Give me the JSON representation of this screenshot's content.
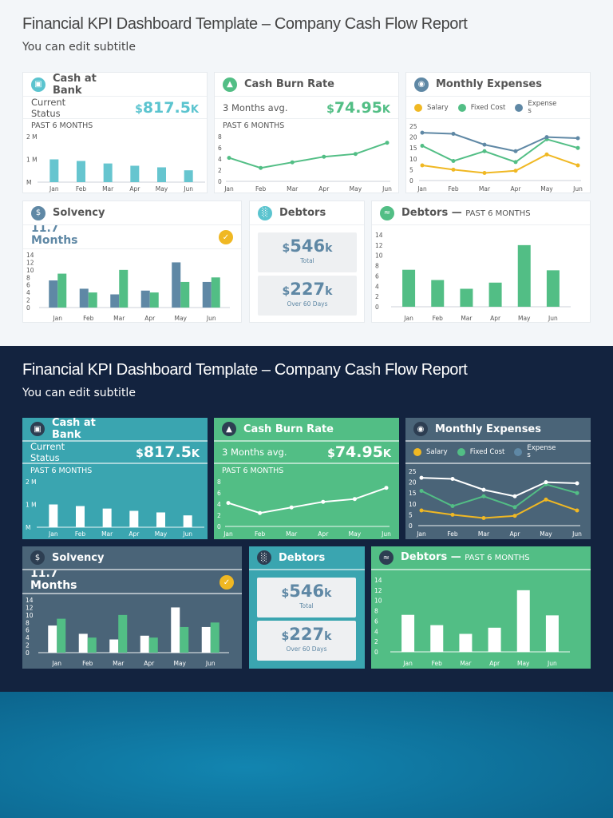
{
  "header": {
    "title": "Financial KPI Dashboard Template – Company Cash Flow Report",
    "subtitle": "You can edit subtitle"
  },
  "colors": {
    "teal": "#5bc4cf",
    "green": "#52be85",
    "slate": "#5f88a5",
    "yellow": "#f0b823",
    "dark_bg": "#13233f"
  },
  "cards": {
    "cash": {
      "title": "Cash at Bank",
      "icon": "bank-icon",
      "status_label": "Current Status",
      "value": {
        "currency": "$",
        "amount": "817.5",
        "suffix": "K"
      },
      "period": "PAST 6 MONTHS"
    },
    "burn": {
      "title": "Cash Burn Rate",
      "icon": "flame-icon",
      "status_label": "3 Months avg.",
      "value": {
        "currency": "$",
        "amount": "74.95",
        "suffix": "K"
      },
      "period": "PAST 6 MONTHS"
    },
    "expenses": {
      "title": "Monthly Expenses",
      "icon": "money-hand-icon",
      "legend": [
        "Salary",
        "Fixed Cost",
        "Expenses"
      ]
    },
    "solvency": {
      "title": "Solvency",
      "icon": "dollar-icon",
      "value": "11.7 Months",
      "status_icon": "check-icon"
    },
    "debtors": {
      "title": "Debtors",
      "icon": "bar-chart-icon",
      "total": {
        "currency": "$",
        "amount": "546",
        "suffix": "k",
        "label": "Total"
      },
      "overdue": {
        "currency": "$",
        "amount": "227",
        "suffix": "k",
        "label": "Over 60 Days"
      }
    },
    "debtors_chart": {
      "title": "Debtors —",
      "subtitle": "PAST 6 MONTHS",
      "icon": "handshake-icon"
    }
  },
  "chart_data": [
    {
      "id": "cash",
      "type": "bar",
      "categories": [
        "Jan",
        "Feb",
        "Mar",
        "Apr",
        "May",
        "Jun"
      ],
      "ylim": [
        0,
        2
      ],
      "yticks": [
        0,
        1,
        2
      ],
      "ytick_labels": [
        "M",
        "1 M",
        "2 M"
      ],
      "series": [
        {
          "values": [
            1.0,
            0.93,
            0.82,
            0.72,
            0.65,
            0.52
          ],
          "color": "#66c5cf"
        }
      ]
    },
    {
      "id": "burn",
      "type": "line",
      "categories": [
        "Jan",
        "Feb",
        "Mar",
        "Apr",
        "May",
        "Jun"
      ],
      "ylim": [
        0,
        8
      ],
      "yticks": [
        0,
        2,
        4,
        6,
        8
      ],
      "series": [
        {
          "values": [
            4.2,
            2.4,
            3.4,
            4.4,
            4.9,
            6.9
          ],
          "color": "#52be85"
        }
      ]
    },
    {
      "id": "expenses",
      "type": "line",
      "categories": [
        "Jan",
        "Feb",
        "Mar",
        "Apr",
        "May",
        "Jun"
      ],
      "ylim": [
        0,
        25
      ],
      "yticks": [
        0,
        5,
        10,
        15,
        20,
        25
      ],
      "series": [
        {
          "name": "Salary",
          "values": [
            7,
            5,
            3.5,
            4.5,
            12,
            7
          ],
          "color": "#f0b823"
        },
        {
          "name": "Fixed Cost",
          "values": [
            16,
            9,
            13.5,
            8.5,
            19,
            15
          ],
          "color": "#52be85"
        },
        {
          "name": "Expenses",
          "values": [
            22,
            21.5,
            16.5,
            13.5,
            20,
            19.5
          ],
          "color": "#5f88a5"
        }
      ]
    },
    {
      "id": "solvency",
      "type": "bar",
      "categories": [
        "Jan",
        "Feb",
        "Mar",
        "Apr",
        "May",
        "Jun"
      ],
      "ylim": [
        0,
        14
      ],
      "yticks": [
        0,
        2,
        4,
        6,
        8,
        10,
        12,
        14
      ],
      "series": [
        {
          "values": [
            7.2,
            5,
            3.5,
            4.5,
            12,
            6.8
          ],
          "color": "#5f88a5"
        },
        {
          "values": [
            9,
            4,
            10,
            4,
            6.8,
            8
          ],
          "color": "#52be85"
        }
      ]
    },
    {
      "id": "debtors",
      "type": "bar",
      "categories": [
        "Jan",
        "Feb",
        "Mar",
        "Apr",
        "May",
        "Jun"
      ],
      "ylim": [
        0,
        14
      ],
      "yticks": [
        0,
        2,
        4,
        6,
        8,
        10,
        12,
        14
      ],
      "series": [
        {
          "values": [
            7.2,
            5.2,
            3.5,
            4.7,
            12,
            7.1
          ],
          "color": "#52be85"
        }
      ]
    }
  ]
}
